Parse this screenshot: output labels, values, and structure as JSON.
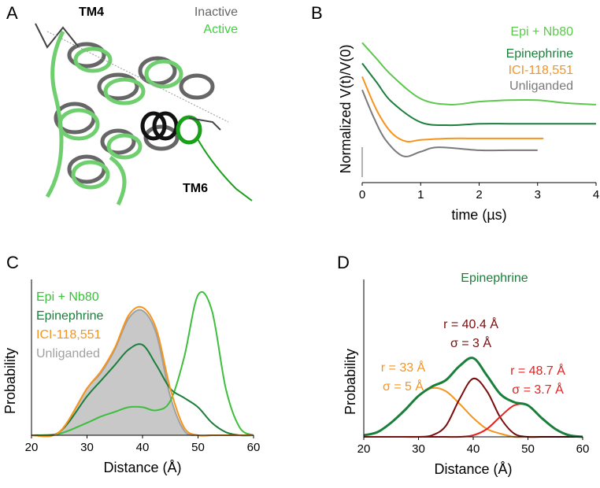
{
  "figure_a": {
    "panel": "A",
    "tm4": "TM4",
    "tm6": "TM6",
    "inactive": "Inactive",
    "active": "Active"
  },
  "chart_data": [
    {
      "type": "line",
      "panel": "B",
      "xlabel": "time (µs)",
      "ylabel": "Normalized V(t)/V(0)",
      "xlim": [
        0,
        4
      ],
      "xticks": [
        0,
        1,
        2,
        3,
        4
      ],
      "ylim": [
        0,
        1
      ],
      "series": [
        {
          "name": "Epi + Nb80",
          "color": "#5cc84c",
          "x": [
            0,
            0.25,
            0.5,
            1,
            1.5,
            2,
            2.5,
            3,
            3.5,
            4
          ],
          "values": [
            0.95,
            0.84,
            0.73,
            0.57,
            0.53,
            0.55,
            0.56,
            0.56,
            0.54,
            0.53
          ]
        },
        {
          "name": "Epinephrine",
          "color": "#1a7f3a",
          "x": [
            0,
            0.25,
            0.5,
            1,
            1.5,
            2,
            2.5,
            3,
            3.5,
            4
          ],
          "values": [
            0.81,
            0.68,
            0.55,
            0.41,
            0.39,
            0.4,
            0.4,
            0.4,
            0.4,
            0.4
          ]
        },
        {
          "name": "ICI-118,551",
          "color": "#f7941d",
          "x": [
            0,
            0.25,
            0.5,
            0.75,
            1,
            1.5,
            2,
            2.5,
            3.1
          ],
          "values": [
            0.72,
            0.49,
            0.34,
            0.28,
            0.29,
            0.3,
            0.3,
            0.3,
            0.3
          ]
        },
        {
          "name": "Unliganded",
          "color": "#7a7a7a",
          "x": [
            0,
            0.2,
            0.4,
            0.7,
            1,
            1.3,
            2,
            2.5,
            3
          ],
          "values": [
            0.63,
            0.44,
            0.29,
            0.18,
            0.21,
            0.24,
            0.22,
            0.22,
            0.22
          ]
        }
      ]
    },
    {
      "type": "line",
      "panel": "C",
      "xlabel": "Distance (Å)",
      "ylabel": "Probability",
      "xlim": [
        20,
        60
      ],
      "xticks": [
        20,
        30,
        40,
        50,
        60
      ],
      "ylim": [
        0,
        1
      ],
      "x": [
        20,
        25,
        30,
        32.5,
        35,
        37.5,
        40,
        42.5,
        45,
        47.5,
        50,
        52.5,
        55,
        57.5,
        60
      ],
      "series": [
        {
          "name": "Epi + Nb80",
          "color": "#3cbf3c",
          "values": [
            0,
            0.01,
            0.08,
            0.12,
            0.15,
            0.18,
            0.18,
            0.16,
            0.22,
            0.5,
            0.9,
            0.8,
            0.3,
            0.05,
            0
          ]
        },
        {
          "name": "Epinephrine",
          "color": "#1a7f3a",
          "values": [
            0,
            0.02,
            0.25,
            0.35,
            0.45,
            0.55,
            0.58,
            0.45,
            0.3,
            0.24,
            0.18,
            0.08,
            0.02,
            0,
            0
          ]
        },
        {
          "name": "ICI-118,551",
          "color": "#f7941d",
          "values": [
            0,
            0.02,
            0.3,
            0.41,
            0.56,
            0.77,
            0.82,
            0.68,
            0.3,
            0.05,
            0,
            0,
            0,
            0,
            0
          ]
        },
        {
          "name": "Unliganded",
          "color": "#a0a0a0",
          "fill": "#c8c8c8",
          "values": [
            0,
            0.02,
            0.3,
            0.4,
            0.55,
            0.75,
            0.8,
            0.65,
            0.25,
            0.03,
            0,
            0,
            0,
            0,
            0
          ]
        }
      ]
    },
    {
      "type": "line",
      "panel": "D",
      "xlabel": "Distance (Å)",
      "ylabel": "Probability",
      "xlim": [
        20,
        60
      ],
      "xticks": [
        20,
        30,
        40,
        50,
        60
      ],
      "ylim": [
        0,
        1
      ],
      "x": [
        20,
        22.5,
        25,
        27.5,
        30,
        32.5,
        35,
        37.5,
        40,
        42.5,
        45,
        47.5,
        50,
        52.5,
        55,
        57.5,
        60
      ],
      "series": [
        {
          "color": "#f7941d",
          "values": [
            0.01,
            0.03,
            0.09,
            0.17,
            0.26,
            0.31,
            0.29,
            0.21,
            0.12,
            0.05,
            0.02,
            0,
            0,
            0,
            0,
            0,
            0
          ]
        },
        {
          "color": "#7a0c0c",
          "values": [
            0,
            0,
            0,
            0,
            0,
            0.01,
            0.07,
            0.24,
            0.37,
            0.29,
            0.12,
            0.02,
            0,
            0,
            0,
            0,
            0
          ]
        },
        {
          "color": "#e8201e",
          "values": [
            0,
            0,
            0,
            0,
            0,
            0,
            0,
            0,
            0.01,
            0.05,
            0.13,
            0.2,
            0.2,
            0.12,
            0.05,
            0.01,
            0
          ]
        },
        {
          "name": "Epinephrine",
          "color": "#1a7f3a",
          "width": 3,
          "values": [
            0.01,
            0.03,
            0.09,
            0.17,
            0.26,
            0.32,
            0.36,
            0.45,
            0.5,
            0.39,
            0.27,
            0.22,
            0.2,
            0.12,
            0.05,
            0.01,
            0
          ]
        }
      ],
      "annotations": [
        {
          "text": "r = 33 Å",
          "color": "#f7941d"
        },
        {
          "text": "σ = 5 Å",
          "color": "#f7941d"
        },
        {
          "text": "r = 40.4 Å",
          "color": "#7a0c0c"
        },
        {
          "text": "σ = 3 Å",
          "color": "#7a0c0c"
        },
        {
          "text": "r = 48.7 Å",
          "color": "#e8201e"
        },
        {
          "text": "σ = 3.7 Å",
          "color": "#e8201e"
        }
      ]
    }
  ]
}
